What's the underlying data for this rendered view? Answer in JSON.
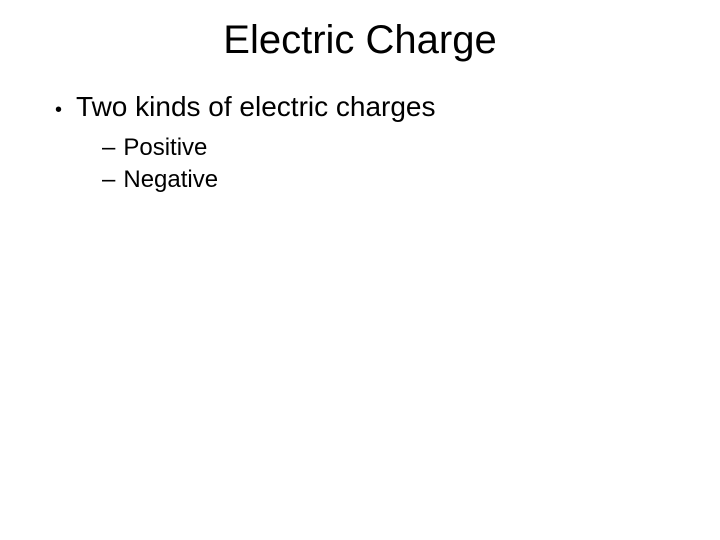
{
  "slide": {
    "title": "Electric Charge",
    "title_fontsize": 40,
    "background_color": "#ffffff",
    "text_color": "#000000",
    "font_family": "Arial",
    "bullets": {
      "level1": [
        {
          "marker": "•",
          "text": "Two kinds of electric charges",
          "fontsize": 28
        }
      ],
      "level2": [
        {
          "marker": "–",
          "text": "Positive",
          "fontsize": 24
        },
        {
          "marker": "–",
          "text": "Negative",
          "fontsize": 24
        }
      ]
    }
  }
}
